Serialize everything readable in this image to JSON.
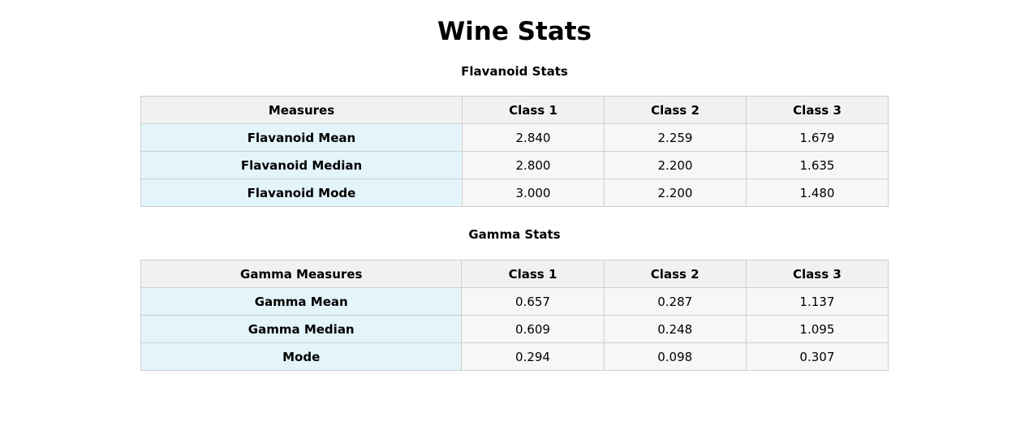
{
  "title": "Wine Stats",
  "flavanoid": {
    "heading": "Flavanoid Stats",
    "columns": [
      "Measures",
      "Class 1",
      "Class 2",
      "Class 3"
    ],
    "rows": [
      {
        "label": "Flavanoid Mean",
        "values": [
          "2.840",
          "2.259",
          "1.679"
        ]
      },
      {
        "label": "Flavanoid Median",
        "values": [
          "2.800",
          "2.200",
          "1.635"
        ]
      },
      {
        "label": "Flavanoid Mode",
        "values": [
          "3.000",
          "2.200",
          "1.480"
        ]
      }
    ]
  },
  "gamma": {
    "heading": "Gamma Stats",
    "columns": [
      "Gamma Measures",
      "Class 1",
      "Class 2",
      "Class 3"
    ],
    "rows": [
      {
        "label": "Gamma Mean",
        "values": [
          "0.657",
          "0.287",
          "1.137"
        ]
      },
      {
        "label": "Gamma Median",
        "values": [
          "0.609",
          "0.248",
          "1.095"
        ]
      },
      {
        "label": "Mode",
        "values": [
          "0.294",
          "0.098",
          "0.307"
        ]
      }
    ]
  },
  "colors": {
    "header_bg": "#f1f1f1",
    "row_label_bg": "#e3f4fb",
    "cell_bg": "#f7f7f7",
    "border": "#cfcfcf"
  }
}
